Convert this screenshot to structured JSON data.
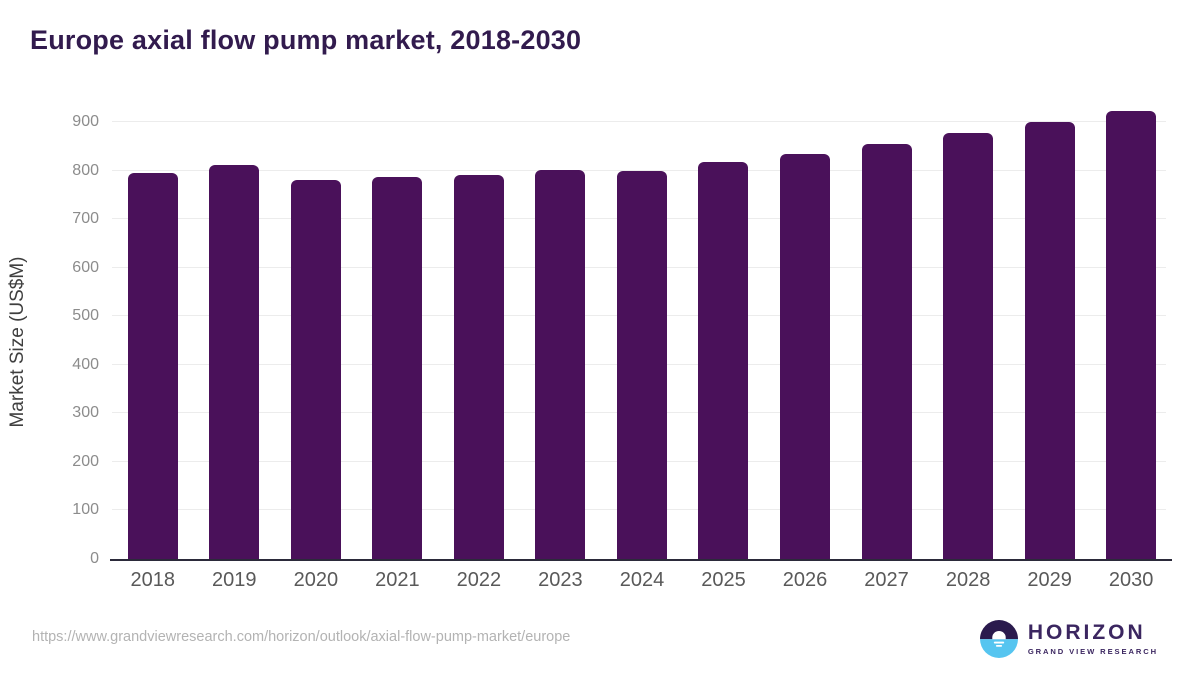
{
  "title": "Europe axial flow pump market, 2018-2030",
  "chart_data": {
    "type": "bar",
    "title": "Europe axial flow pump market, 2018-2030",
    "categories": [
      "2018",
      "2019",
      "2020",
      "2021",
      "2022",
      "2023",
      "2024",
      "2025",
      "2026",
      "2027",
      "2028",
      "2029",
      "2030"
    ],
    "values": [
      796,
      811,
      781,
      786,
      790,
      802,
      799,
      817,
      834,
      855,
      878,
      900,
      922
    ],
    "xlabel": "",
    "ylabel": "Market Size (US$M)",
    "ylim": [
      0,
      900
    ],
    "yticks": [
      0,
      100,
      200,
      300,
      400,
      500,
      600,
      700,
      800,
      900
    ],
    "grid": "horizontal",
    "legend": "none",
    "bar_color": "#4a115a"
  },
  "footer": {
    "source_url": "https://www.grandviewresearch.com/horizon/outlook/axial-flow-pump-market/europe",
    "logo": {
      "title": "HORIZON",
      "subtitle": "GRAND VIEW RESEARCH"
    }
  },
  "colors": {
    "bar_color": "#4a115a",
    "title_color": "#321b4e",
    "grid_color": "#ececec",
    "axis_color": "#2b2a3a",
    "ytick_color": "#8c8c8c",
    "xtick_color": "#595959",
    "ylabel_color": "#3f3f3f",
    "url_color": "#b3b3b3",
    "logo_purple": "#2a1a4d",
    "logo_blue": "#56c5f0"
  }
}
